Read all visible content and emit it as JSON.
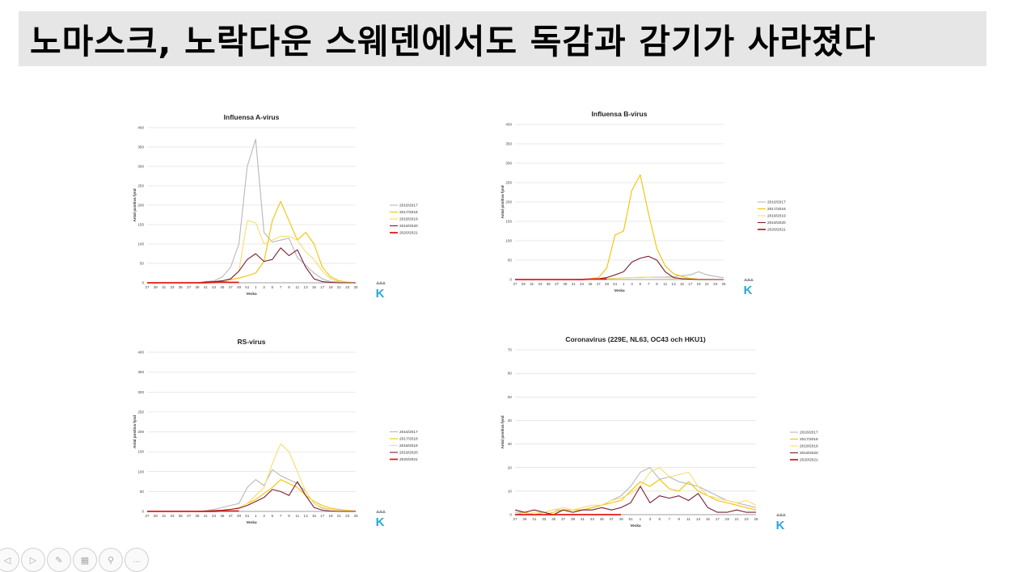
{
  "title": "노마스크, 노락다운 스웨덴에서도 독감과 감기가 사라졌다",
  "colors": {
    "2016/2017": "#b8b8b8",
    "2017/2018": "#f2c200",
    "2018/2019": "#f7dd6a",
    "2019/2020": "#7a1f30",
    "2020/2021": "#e01b1b"
  },
  "toolbar": {
    "icons": [
      "prev-icon",
      "next-icon",
      "pen-icon",
      "slides-icon",
      "zoom-icon",
      "more-icon"
    ],
    "more_label": "..."
  },
  "chart_data": [
    {
      "type": "line",
      "title": "Influensa A-virus",
      "xlabel": "Vecka",
      "ylabel": "Antal positiva fynd",
      "ylim": [
        0,
        400
      ],
      "yticks": [
        0,
        50,
        100,
        150,
        200,
        250,
        300,
        350,
        400
      ],
      "x": [
        "27",
        "29",
        "31",
        "33",
        "35",
        "37",
        "39",
        "41",
        "43",
        "45",
        "47",
        "49",
        "51",
        "1",
        "3",
        "5",
        "7",
        "9",
        "11",
        "13",
        "15",
        "17",
        "19",
        "21",
        "23",
        "25"
      ],
      "series": [
        {
          "name": "2016/2017",
          "values": [
            0,
            0,
            0,
            0,
            0,
            0,
            0,
            3,
            5,
            15,
            40,
            100,
            300,
            370,
            130,
            105,
            110,
            115,
            65,
            45,
            25,
            10,
            3,
            2,
            1,
            0
          ]
        },
        {
          "name": "2017/2018",
          "values": [
            0,
            0,
            0,
            0,
            0,
            0,
            0,
            2,
            3,
            5,
            8,
            12,
            18,
            25,
            55,
            160,
            210,
            160,
            110,
            130,
            100,
            40,
            15,
            5,
            2,
            0
          ]
        },
        {
          "name": "2018/2019",
          "values": [
            0,
            0,
            0,
            0,
            0,
            0,
            0,
            2,
            3,
            5,
            10,
            30,
            160,
            155,
            100,
            110,
            120,
            120,
            110,
            80,
            60,
            30,
            10,
            3,
            2,
            0
          ]
        },
        {
          "name": "2019/2020",
          "values": [
            0,
            0,
            0,
            0,
            0,
            0,
            0,
            2,
            3,
            5,
            10,
            30,
            60,
            75,
            55,
            60,
            90,
            70,
            85,
            40,
            10,
            3,
            1,
            0,
            0,
            0
          ]
        },
        {
          "name": "2020/2021",
          "values": [
            0,
            0,
            0,
            0,
            0,
            0,
            0,
            0,
            1,
            2,
            1,
            1,
            null,
            null,
            null,
            null,
            null,
            null,
            null,
            null,
            null,
            null,
            null,
            null,
            null,
            null
          ]
        }
      ]
    },
    {
      "type": "line",
      "title": "Influensa B-virus",
      "xlabel": "Vecka",
      "ylabel": "Antal positiva fynd",
      "ylim": [
        0,
        400
      ],
      "yticks": [
        0,
        50,
        100,
        150,
        200,
        250,
        300,
        350,
        400
      ],
      "x": [
        "27",
        "29",
        "31",
        "33",
        "35",
        "37",
        "39",
        "41",
        "43",
        "45",
        "47",
        "49",
        "51",
        "1",
        "3",
        "5",
        "7",
        "9",
        "11",
        "13",
        "15",
        "17",
        "19",
        "21",
        "23",
        "25"
      ],
      "series": [
        {
          "name": "2016/2017",
          "values": [
            0,
            0,
            0,
            0,
            0,
            0,
            0,
            0,
            1,
            1,
            2,
            2,
            3,
            4,
            5,
            5,
            6,
            6,
            6,
            8,
            10,
            12,
            20,
            12,
            8,
            5
          ]
        },
        {
          "name": "2017/2018",
          "values": [
            0,
            0,
            0,
            0,
            0,
            0,
            0,
            0,
            1,
            2,
            5,
            30,
            115,
            125,
            230,
            270,
            170,
            80,
            35,
            15,
            8,
            3,
            1,
            0,
            0,
            0
          ]
        },
        {
          "name": "2018/2019",
          "values": [
            0,
            0,
            0,
            0,
            0,
            0,
            0,
            0,
            0,
            1,
            1,
            2,
            3,
            4,
            5,
            6,
            6,
            5,
            5,
            4,
            3,
            2,
            1,
            1,
            0,
            0
          ]
        },
        {
          "name": "2019/2020",
          "values": [
            0,
            0,
            0,
            0,
            0,
            0,
            0,
            0,
            0,
            1,
            2,
            5,
            12,
            20,
            45,
            55,
            60,
            50,
            20,
            5,
            2,
            1,
            0,
            0,
            0,
            0
          ]
        },
        {
          "name": "2020/2021",
          "values": [
            0,
            0,
            0,
            0,
            0,
            0,
            0,
            0,
            0,
            1,
            1,
            1,
            null,
            null,
            null,
            null,
            null,
            null,
            null,
            null,
            null,
            null,
            null,
            null,
            null,
            null
          ]
        }
      ]
    },
    {
      "type": "line",
      "title": "RS-virus",
      "xlabel": "Vecka",
      "ylabel": "Antal positiva fynd",
      "ylim": [
        0,
        400
      ],
      "yticks": [
        0,
        50,
        100,
        150,
        200,
        250,
        300,
        350,
        400
      ],
      "x": [
        "27",
        "29",
        "31",
        "33",
        "35",
        "37",
        "39",
        "41",
        "43",
        "45",
        "47",
        "49",
        "51",
        "1",
        "3",
        "5",
        "7",
        "9",
        "11",
        "13",
        "15",
        "17",
        "19",
        "21",
        "23",
        "25"
      ],
      "series": [
        {
          "name": "2016/2017",
          "values": [
            0,
            0,
            0,
            0,
            0,
            0,
            0,
            2,
            5,
            10,
            15,
            20,
            60,
            80,
            65,
            105,
            90,
            80,
            70,
            50,
            20,
            8,
            5,
            3,
            2,
            1
          ]
        },
        {
          "name": "2017/2018",
          "values": [
            0,
            0,
            0,
            0,
            0,
            0,
            0,
            1,
            2,
            3,
            5,
            10,
            20,
            30,
            45,
            60,
            80,
            70,
            60,
            40,
            25,
            15,
            8,
            5,
            3,
            1
          ]
        },
        {
          "name": "2018/2019",
          "values": [
            0,
            0,
            0,
            0,
            0,
            0,
            0,
            1,
            2,
            3,
            5,
            10,
            20,
            40,
            60,
            120,
            170,
            150,
            100,
            50,
            20,
            10,
            5,
            3,
            2,
            1
          ]
        },
        {
          "name": "2019/2020",
          "values": [
            0,
            0,
            0,
            0,
            0,
            0,
            0,
            1,
            2,
            3,
            5,
            8,
            15,
            25,
            35,
            55,
            50,
            40,
            75,
            40,
            10,
            3,
            1,
            0,
            0,
            0
          ]
        },
        {
          "name": "2020/2021",
          "values": [
            0,
            0,
            0,
            0,
            0,
            0,
            0,
            0,
            0,
            1,
            1,
            1,
            null,
            null,
            null,
            null,
            null,
            null,
            null,
            null,
            null,
            null,
            null,
            null,
            null,
            null
          ]
        }
      ]
    },
    {
      "type": "line",
      "title": "Coronavirus (229E, NL63, OC43 och HKU1)",
      "xlabel": "Vecka",
      "ylabel": "Antal positiva fynd",
      "ylim": [
        0,
        70
      ],
      "yticks": [
        0,
        10,
        20,
        30,
        40,
        50,
        60,
        70
      ],
      "x": [
        "27",
        "29",
        "31",
        "33",
        "35",
        "37",
        "39",
        "41",
        "43",
        "45",
        "47",
        "49",
        "51",
        "1",
        "3",
        "5",
        "7",
        "9",
        "11",
        "13",
        "15",
        "17",
        "19",
        "21",
        "23",
        "25"
      ],
      "series": [
        {
          "name": "2016/2017",
          "values": [
            1,
            1,
            0,
            1,
            2,
            2,
            1,
            2,
            3,
            4,
            6,
            8,
            12,
            18,
            20,
            15,
            16,
            14,
            13,
            12,
            10,
            8,
            6,
            5,
            4,
            3
          ]
        },
        {
          "name": "2017/2018",
          "values": [
            0,
            1,
            0,
            0,
            1,
            2,
            2,
            2,
            3,
            4,
            5,
            6,
            10,
            14,
            12,
            15,
            11,
            10,
            14,
            10,
            8,
            6,
            5,
            4,
            3,
            2
          ]
        },
        {
          "name": "2018/2019",
          "values": [
            0,
            0,
            1,
            1,
            2,
            3,
            2,
            3,
            4,
            4,
            6,
            7,
            9,
            12,
            18,
            20,
            16,
            17,
            18,
            12,
            8,
            7,
            6,
            5,
            6,
            4
          ]
        },
        {
          "name": "2019/2020",
          "values": [
            2,
            1,
            2,
            1,
            0,
            2,
            1,
            2,
            2,
            3,
            2,
            3,
            5,
            12,
            5,
            8,
            7,
            8,
            6,
            9,
            3,
            1,
            1,
            2,
            1,
            1
          ]
        },
        {
          "name": "2020/2021",
          "values": [
            0,
            0,
            0,
            0,
            0,
            0,
            0,
            0,
            0,
            0,
            0,
            0,
            null,
            null,
            null,
            null,
            null,
            null,
            null,
            null,
            null,
            null,
            null,
            null,
            null,
            null
          ]
        }
      ]
    }
  ]
}
